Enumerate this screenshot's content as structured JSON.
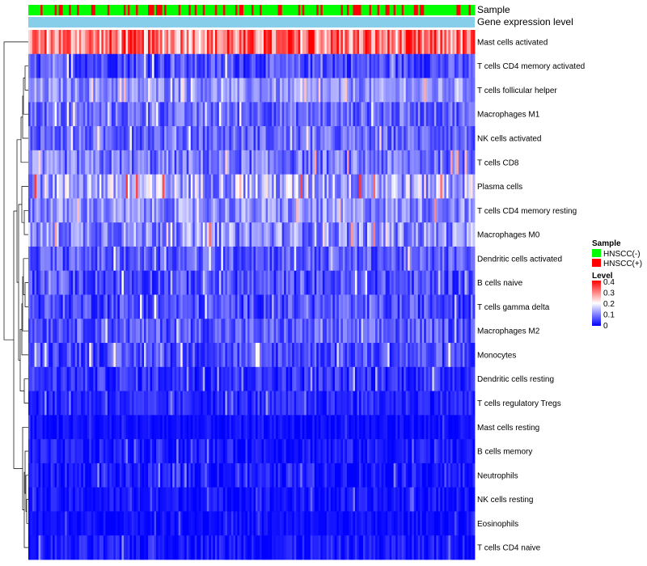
{
  "chart_data": {
    "type": "heatmap",
    "title": "",
    "annotation_tracks": [
      {
        "name": "Sample"
      },
      {
        "name": "Gene expression level"
      }
    ],
    "rows": [
      {
        "label": "Mast cells activated",
        "mean": 0.3,
        "spread": 0.1
      },
      {
        "label": "T cells CD4 memory activated",
        "mean": 0.06,
        "spread": 0.05
      },
      {
        "label": "T cells follicular helper",
        "mean": 0.11,
        "spread": 0.05
      },
      {
        "label": "Macrophages M1",
        "mean": 0.08,
        "spread": 0.05
      },
      {
        "label": "NK cells activated",
        "mean": 0.08,
        "spread": 0.05
      },
      {
        "label": "T cells CD8",
        "mean": 0.09,
        "spread": 0.06
      },
      {
        "label": "Plasma cells",
        "mean": 0.14,
        "spread": 0.09
      },
      {
        "label": "T cells CD4 memory resting",
        "mean": 0.11,
        "spread": 0.06
      },
      {
        "label": "Macrophages M0",
        "mean": 0.11,
        "spread": 0.07
      },
      {
        "label": "Dendritic cells activated",
        "mean": 0.07,
        "spread": 0.05
      },
      {
        "label": "B cells naive",
        "mean": 0.06,
        "spread": 0.05
      },
      {
        "label": "T cells gamma delta",
        "mean": 0.06,
        "spread": 0.05
      },
      {
        "label": "Macrophages M2",
        "mean": 0.07,
        "spread": 0.05
      },
      {
        "label": "Monocytes",
        "mean": 0.06,
        "spread": 0.05
      },
      {
        "label": "Dendritic cells resting",
        "mean": 0.04,
        "spread": 0.04
      },
      {
        "label": "T cells regulatory  Tregs",
        "mean": 0.03,
        "spread": 0.03
      },
      {
        "label": "Mast cells resting",
        "mean": 0.01,
        "spread": 0.02
      },
      {
        "label": "B cells memory",
        "mean": 0.02,
        "spread": 0.03
      },
      {
        "label": "Neutrophils",
        "mean": 0.02,
        "spread": 0.03
      },
      {
        "label": "NK cells resting",
        "mean": 0.015,
        "spread": 0.025
      },
      {
        "label": "Eosinophils",
        "mean": 0.01,
        "spread": 0.02
      },
      {
        "label": "T cells CD4 naive",
        "mean": 0.02,
        "spread": 0.03
      }
    ],
    "n_samples": 220,
    "sample_groups": [
      "HNSCC(-)",
      "HNSCC(+)"
    ],
    "sample_group_fraction_positive": 0.3,
    "color_scale": {
      "min": 0,
      "max": 0.4,
      "stops": [
        "#0000ff",
        "#ffffff",
        "#ff0000"
      ],
      "ticks": [
        "0.4",
        "0.3",
        "0.2",
        "0.1",
        "0"
      ]
    },
    "legend": {
      "sample_title": "Sample",
      "sample_entries": [
        {
          "label": "HNSCC(-)",
          "color": "#00ff00"
        },
        {
          "label": "HNSCC(+)",
          "color": "#ff0000"
        }
      ],
      "level_title": "Level",
      "placement": "right"
    },
    "expression_track_color": "#87ceeb"
  }
}
